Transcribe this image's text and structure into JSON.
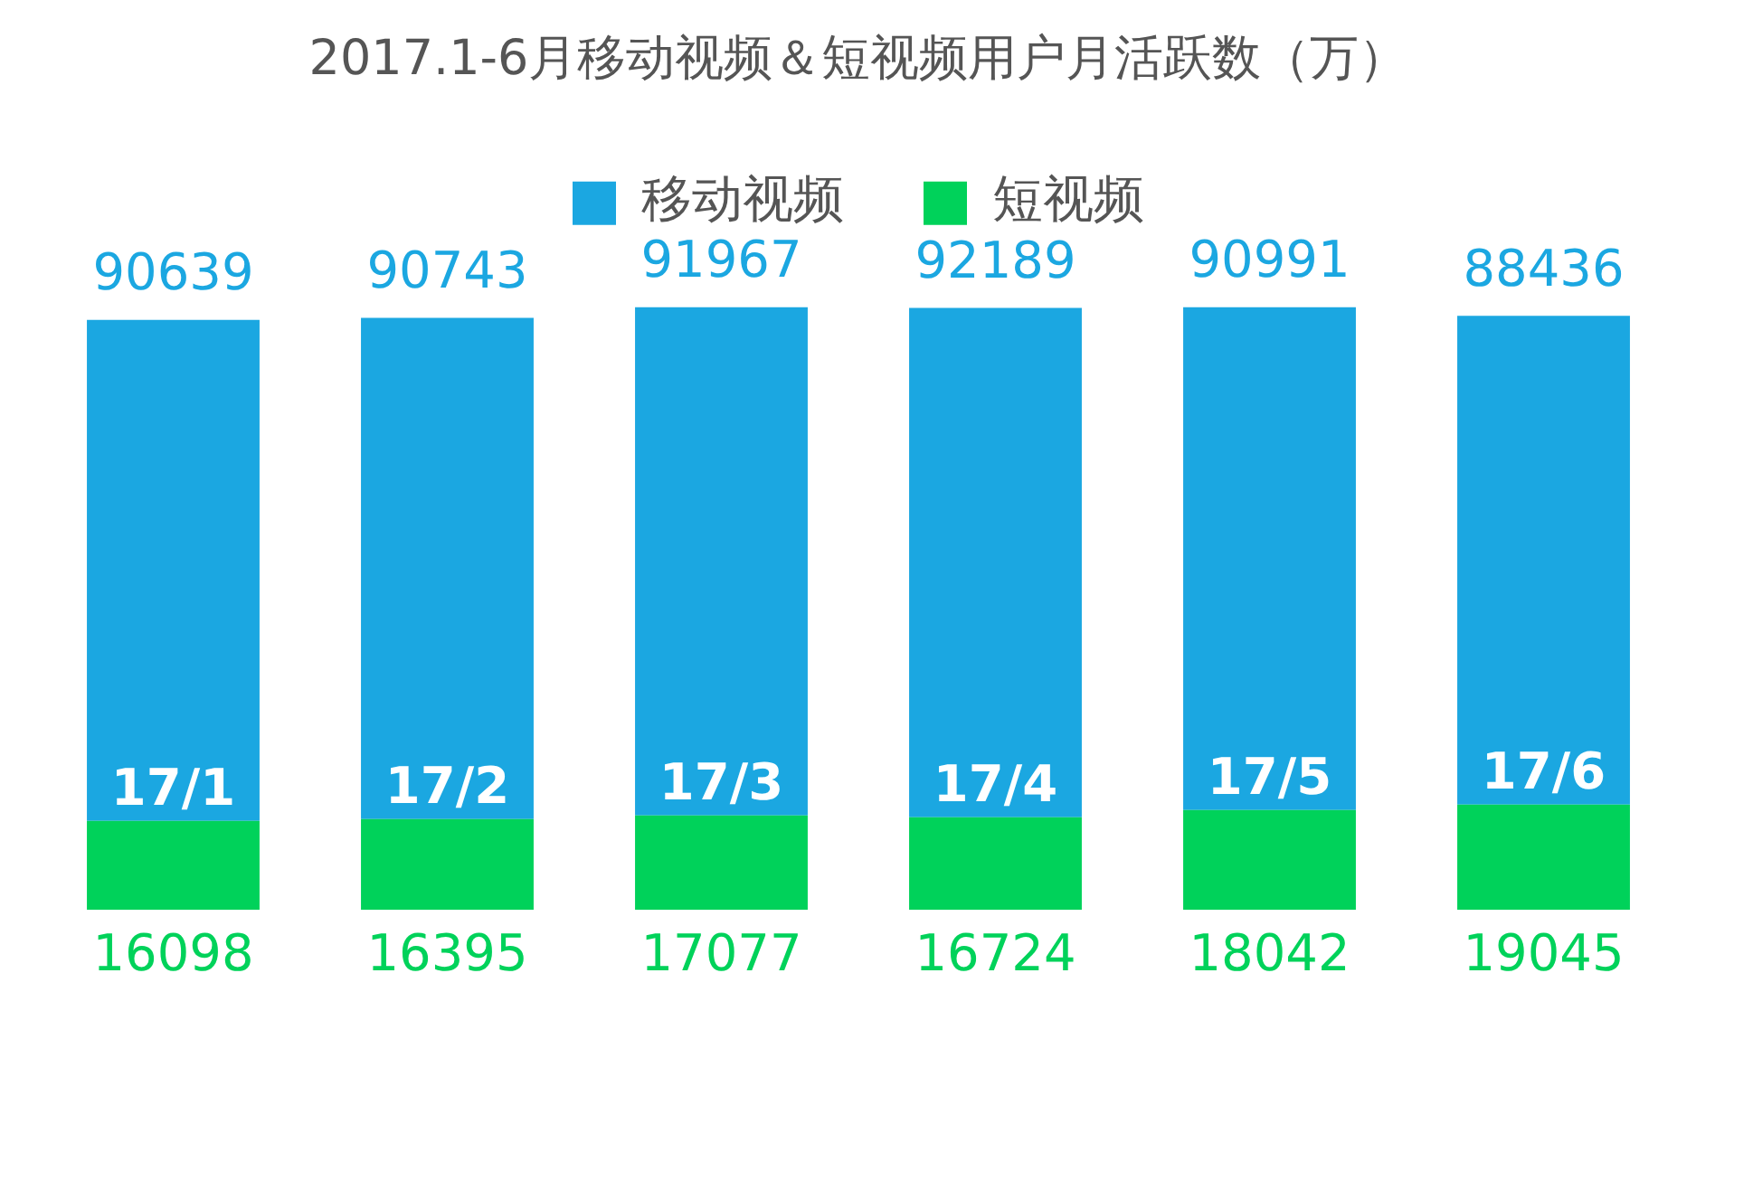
{
  "chart_data": {
    "type": "bar",
    "title": "2017.1-6月移动视频＆短视频用户月活跃数（万）",
    "categories": [
      "17/1",
      "17/2",
      "17/3",
      "17/4",
      "17/5",
      "17/6"
    ],
    "series": [
      {
        "name": "短视频",
        "color": "#00d25a",
        "values": [
          16098,
          16395,
          17077,
          16724,
          18042,
          19045
        ]
      },
      {
        "name": "移动视频",
        "color": "#1ba7e1",
        "values": [
          90639,
          90743,
          91967,
          92189,
          90991,
          88436
        ]
      }
    ],
    "stacked": true,
    "data_labels": true,
    "legend": "top",
    "tick_labels": "x"
  }
}
